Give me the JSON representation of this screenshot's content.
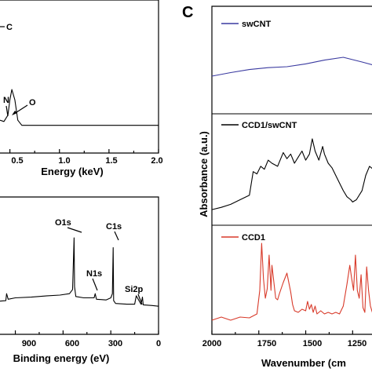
{
  "panel_label": "C",
  "chart_data": [
    {
      "type": "line",
      "panel": "EDS (top-left, cropped)",
      "xlabel": "Energy (keV)",
      "xticks": [
        "0.5",
        "1.0",
        "1.5",
        "2.0"
      ],
      "xlim": [
        0.4,
        2.0
      ],
      "annotations": [
        "C",
        "N",
        "O"
      ],
      "series": [
        {
          "x": [
            0.4,
            0.44,
            0.48,
            0.5,
            0.52,
            0.55,
            0.58,
            0.62,
            0.7,
            0.9,
            1.2,
            1.5,
            1.8,
            2.0
          ],
          "y": [
            0.06,
            0.05,
            0.1,
            0.22,
            0.3,
            0.22,
            0.06,
            0.02,
            0.02,
            0.02,
            0.02,
            0.02,
            0.02,
            0.02
          ]
        }
      ]
    },
    {
      "type": "line",
      "panel": "XPS (bottom-left, cropped)",
      "xlabel": "Binding energy (eV)",
      "xticks": [
        "0",
        "300",
        "600",
        "900"
      ],
      "xlim": [
        1100,
        0
      ],
      "annotations": [
        "O1s",
        "N1s",
        "C1s",
        "Si2p"
      ],
      "series": [
        {
          "x": [
            1080,
            1020,
            960,
            955,
            945,
            900,
            800,
            700,
            620,
            560,
            540,
            531,
            528,
            520,
            470,
            405,
            398,
            390,
            330,
            300,
            290,
            285,
            282,
            270,
            200,
            150,
            140,
            110,
            101,
            96,
            40,
            0
          ],
          "y": [
            0.07,
            0.09,
            0.1,
            0.2,
            0.12,
            0.14,
            0.15,
            0.17,
            0.18,
            0.2,
            0.26,
            1.0,
            0.3,
            0.16,
            0.14,
            0.14,
            0.2,
            0.12,
            0.11,
            0.14,
            0.2,
            0.86,
            0.1,
            0.06,
            0.05,
            0.05,
            0.17,
            0.05,
            0.15,
            0.04,
            0.03,
            0.02
          ]
        }
      ]
    },
    {
      "type": "line",
      "panel": "C - FTIR",
      "xlabel": "Wavenumber (cm",
      "ylabel": "Absorbance (a.u.)",
      "xticks": [
        "2000",
        "1750",
        "1500",
        "1250"
      ],
      "xlim": [
        2000,
        1130
      ],
      "series": [
        {
          "name": "swCNT",
          "color": "#3a3aa0",
          "x": [
            2000,
            1900,
            1800,
            1700,
            1600,
            1500,
            1400,
            1300,
            1200,
            1130
          ],
          "y": [
            0.1,
            0.25,
            0.38,
            0.46,
            0.5,
            0.62,
            0.78,
            0.9,
            0.7,
            0.55
          ]
        },
        {
          "name": "CCD1/swCNT",
          "color": "#000000",
          "x": [
            2000,
            1950,
            1900,
            1850,
            1800,
            1780,
            1760,
            1740,
            1720,
            1700,
            1680,
            1650,
            1620,
            1600,
            1580,
            1560,
            1540,
            1520,
            1500,
            1480,
            1465,
            1450,
            1430,
            1410,
            1400,
            1380,
            1360,
            1340,
            1320,
            1300,
            1280,
            1260,
            1250,
            1230,
            1200,
            1180,
            1160,
            1140,
            1130
          ],
          "y": [
            0.05,
            0.08,
            0.12,
            0.18,
            0.24,
            0.55,
            0.52,
            0.62,
            0.58,
            0.7,
            0.66,
            0.62,
            0.8,
            0.72,
            0.78,
            0.66,
            0.74,
            0.82,
            0.7,
            0.78,
            0.98,
            0.82,
            0.7,
            0.88,
            0.78,
            0.66,
            0.6,
            0.5,
            0.4,
            0.3,
            0.22,
            0.18,
            0.15,
            0.18,
            0.3,
            0.5,
            0.62,
            0.58,
            0.52
          ]
        },
        {
          "name": "CCD1",
          "color": "#d83a2a",
          "x": [
            2000,
            1950,
            1900,
            1850,
            1800,
            1760,
            1745,
            1735,
            1725,
            1715,
            1705,
            1695,
            1685,
            1680,
            1660,
            1650,
            1640,
            1620,
            1600,
            1590,
            1580,
            1570,
            1560,
            1540,
            1520,
            1500,
            1490,
            1480,
            1470,
            1460,
            1450,
            1440,
            1420,
            1400,
            1380,
            1360,
            1340,
            1320,
            1300,
            1280,
            1265,
            1255,
            1245,
            1235,
            1225,
            1215,
            1205,
            1195,
            1185,
            1175,
            1165,
            1155,
            1145,
            1130
          ],
          "y": [
            0.02,
            0.06,
            0.02,
            0.06,
            0.05,
            0.1,
            0.4,
            1.0,
            0.55,
            0.3,
            0.42,
            0.85,
            0.4,
            0.72,
            0.3,
            0.28,
            0.36,
            0.5,
            0.62,
            0.5,
            0.38,
            0.22,
            0.14,
            0.12,
            0.16,
            0.14,
            0.26,
            0.16,
            0.22,
            0.12,
            0.2,
            0.1,
            0.14,
            0.1,
            0.12,
            0.1,
            0.12,
            0.1,
            0.2,
            0.48,
            0.72,
            0.55,
            0.4,
            0.85,
            0.4,
            0.3,
            0.6,
            0.18,
            0.12,
            0.7,
            0.4,
            0.2,
            0.12,
            0.08
          ]
        }
      ]
    }
  ]
}
